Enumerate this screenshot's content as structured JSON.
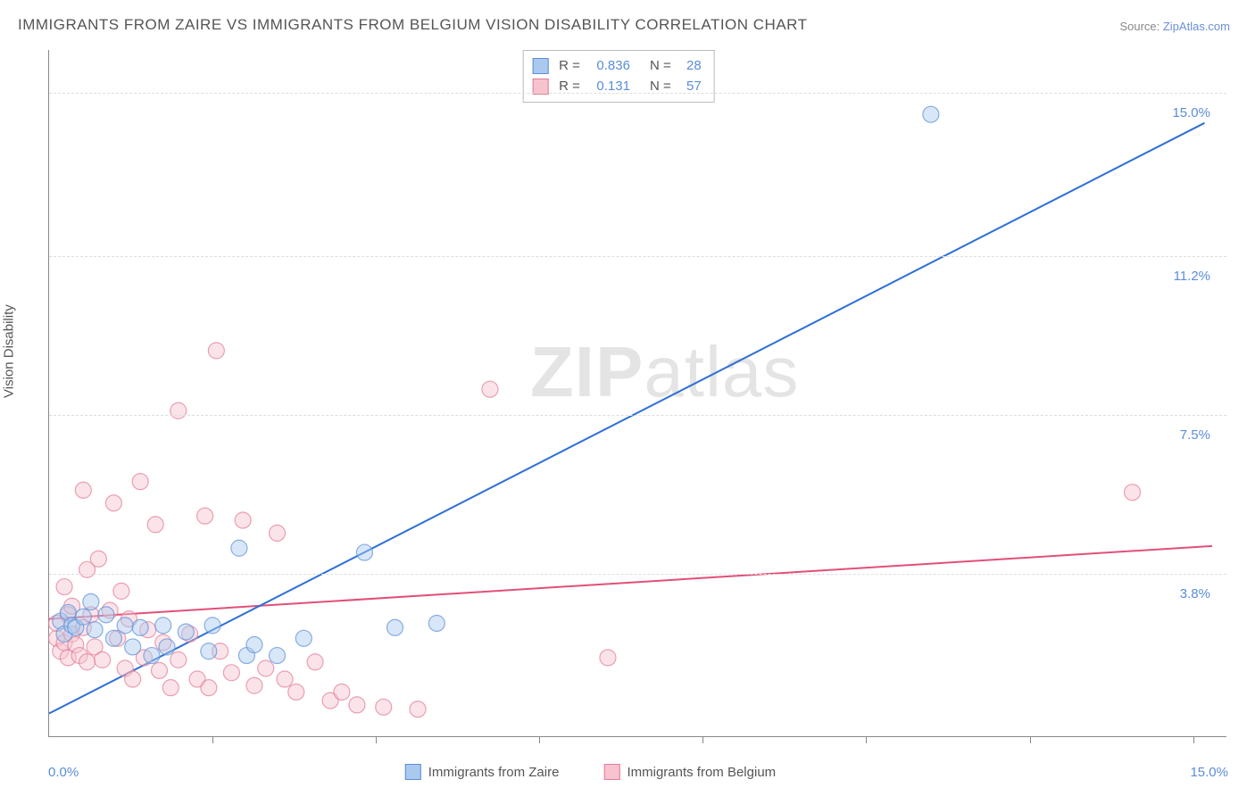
{
  "title": "IMMIGRANTS FROM ZAIRE VS IMMIGRANTS FROM BELGIUM VISION DISABILITY CORRELATION CHART",
  "source": {
    "label": "Source: ",
    "link": "ZipAtlas.com"
  },
  "ylabel": "Vision Disability",
  "watermark": {
    "bold": "ZIP",
    "rest": "atlas"
  },
  "chart": {
    "type": "scatter",
    "xlim": [
      0,
      15.5
    ],
    "ylim": [
      0,
      16.0
    ],
    "x_min_label": "0.0%",
    "x_max_label": "15.0%",
    "y_ticks": [
      {
        "value": 3.8,
        "label": "3.8%"
      },
      {
        "value": 7.5,
        "label": "7.5%"
      },
      {
        "value": 11.2,
        "label": "11.2%"
      },
      {
        "value": 15.0,
        "label": "15.0%"
      }
    ],
    "x_tick_positions": [
      2.15,
      4.3,
      6.45,
      8.6,
      10.75,
      12.9,
      15.05
    ],
    "background_color": "#ffffff",
    "grid_color": "#dddddd",
    "axis_color": "#888888",
    "label_color": "#5b8dd8",
    "marker_radius": 9,
    "marker_opacity": 0.45,
    "line_width": 2,
    "series": [
      {
        "name": "Immigrants from Zaire",
        "fill": "#a9c9ee",
        "stroke": "#5b8dd8",
        "line_color": "#2d6fd6",
        "R": "0.836",
        "N": "28",
        "trend": {
          "x1": 0,
          "y1": 0.55,
          "x2": 15.2,
          "y2": 14.3
        },
        "points": [
          [
            0.15,
            2.7
          ],
          [
            0.2,
            2.4
          ],
          [
            0.25,
            2.9
          ],
          [
            0.3,
            2.6
          ],
          [
            0.35,
            2.55
          ],
          [
            0.45,
            2.8
          ],
          [
            0.55,
            3.15
          ],
          [
            0.6,
            2.5
          ],
          [
            0.75,
            2.85
          ],
          [
            0.85,
            2.3
          ],
          [
            1.0,
            2.6
          ],
          [
            1.1,
            2.1
          ],
          [
            1.2,
            2.55
          ],
          [
            1.35,
            1.9
          ],
          [
            1.5,
            2.6
          ],
          [
            1.55,
            2.1
          ],
          [
            1.8,
            2.45
          ],
          [
            2.1,
            2.0
          ],
          [
            2.15,
            2.6
          ],
          [
            2.5,
            4.4
          ],
          [
            2.6,
            1.9
          ],
          [
            2.7,
            2.15
          ],
          [
            3.0,
            1.9
          ],
          [
            3.35,
            2.3
          ],
          [
            4.15,
            4.3
          ],
          [
            4.55,
            2.55
          ],
          [
            5.1,
            2.65
          ],
          [
            11.6,
            14.5
          ]
        ]
      },
      {
        "name": "Immigrants from Belgium",
        "fill": "#f6c3cf",
        "stroke": "#e27a94",
        "line_color": "#e14f7a",
        "R": "0.131",
        "N": "57",
        "trend": {
          "x1": 0,
          "y1": 2.75,
          "x2": 15.3,
          "y2": 4.45
        },
        "points": [
          [
            0.1,
            2.3
          ],
          [
            0.1,
            2.65
          ],
          [
            0.15,
            2.0
          ],
          [
            0.2,
            3.5
          ],
          [
            0.2,
            2.2
          ],
          [
            0.25,
            2.85
          ],
          [
            0.25,
            1.85
          ],
          [
            0.3,
            3.05
          ],
          [
            0.3,
            2.4
          ],
          [
            0.35,
            2.15
          ],
          [
            0.4,
            1.9
          ],
          [
            0.45,
            5.75
          ],
          [
            0.45,
            2.55
          ],
          [
            0.5,
            3.9
          ],
          [
            0.5,
            1.75
          ],
          [
            0.55,
            2.85
          ],
          [
            0.6,
            2.1
          ],
          [
            0.65,
            4.15
          ],
          [
            0.7,
            1.8
          ],
          [
            0.8,
            2.95
          ],
          [
            0.85,
            5.45
          ],
          [
            0.9,
            2.3
          ],
          [
            0.95,
            3.4
          ],
          [
            1.0,
            1.6
          ],
          [
            1.05,
            2.75
          ],
          [
            1.1,
            1.35
          ],
          [
            1.2,
            5.95
          ],
          [
            1.25,
            1.85
          ],
          [
            1.3,
            2.5
          ],
          [
            1.4,
            4.95
          ],
          [
            1.45,
            1.55
          ],
          [
            1.5,
            2.2
          ],
          [
            1.6,
            1.15
          ],
          [
            1.7,
            7.6
          ],
          [
            1.7,
            1.8
          ],
          [
            1.85,
            2.4
          ],
          [
            1.95,
            1.35
          ],
          [
            2.05,
            5.15
          ],
          [
            2.1,
            1.15
          ],
          [
            2.2,
            9.0
          ],
          [
            2.25,
            2.0
          ],
          [
            2.4,
            1.5
          ],
          [
            2.55,
            5.05
          ],
          [
            2.7,
            1.2
          ],
          [
            2.85,
            1.6
          ],
          [
            3.0,
            4.75
          ],
          [
            3.1,
            1.35
          ],
          [
            3.25,
            1.05
          ],
          [
            3.5,
            1.75
          ],
          [
            3.7,
            0.85
          ],
          [
            3.85,
            1.05
          ],
          [
            4.05,
            0.75
          ],
          [
            4.4,
            0.7
          ],
          [
            4.85,
            0.65
          ],
          [
            5.8,
            8.1
          ],
          [
            7.35,
            1.85
          ],
          [
            14.25,
            5.7
          ]
        ]
      }
    ]
  },
  "legend": {
    "series1_label": "Immigrants from Zaire",
    "series2_label": "Immigrants from Belgium"
  },
  "stats_labels": {
    "R": "R =",
    "N": "N ="
  }
}
